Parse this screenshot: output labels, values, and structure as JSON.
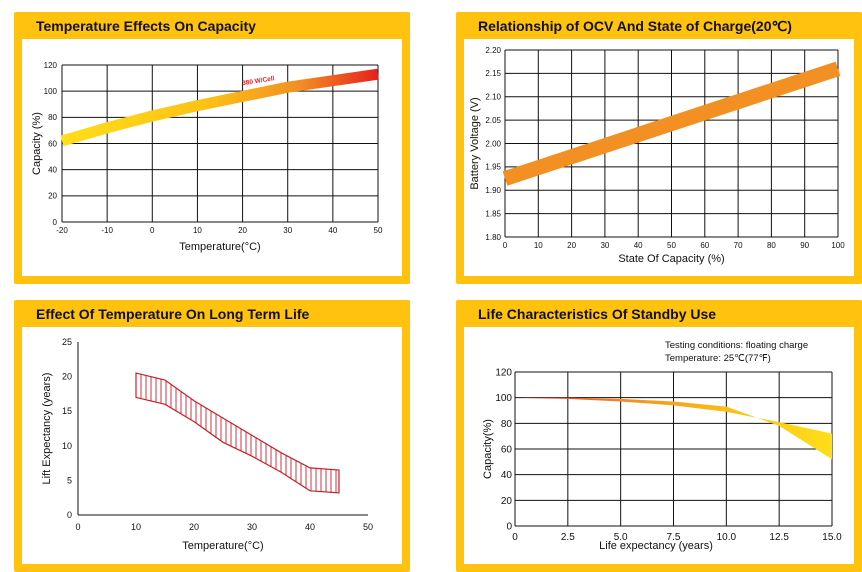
{
  "colors": {
    "accent": "#ffc20e",
    "grid": "#111111",
    "red": "#e8201e",
    "orange": "#f29023",
    "yellow": "#ffde1a",
    "hatch": "#c8202a"
  },
  "chart_data": [
    {
      "id": "temp-capacity",
      "type": "line",
      "title": "Temperature Effects On Capacity",
      "xlabel": "Temperature(°C)",
      "ylabel": "Capacity (%)",
      "xlim": [
        -20,
        50
      ],
      "ylim": [
        0,
        120
      ],
      "xticks": [
        "-20",
        "-10",
        "0",
        "10",
        "20",
        "30",
        "40",
        "50"
      ],
      "yticks": [
        "0",
        "20",
        "40",
        "60",
        "80",
        "100",
        "120"
      ],
      "grid": true,
      "series": [
        {
          "x": [
            -20,
            -10,
            0,
            10,
            20,
            30,
            40,
            50
          ],
          "y": [
            62,
            72,
            81,
            89,
            96,
            103,
            108,
            113
          ]
        }
      ],
      "annotation": "380 W/Cell",
      "gradient": "yellow-to-red"
    },
    {
      "id": "ocv-soc",
      "type": "line",
      "title": "Relationship of OCV And State of Charge(20℃)",
      "xlabel": "State Of Capacity (%)",
      "ylabel": "Battery Voltage (V)",
      "xlim": [
        0,
        100
      ],
      "ylim": [
        1.8,
        2.2
      ],
      "xticks": [
        "0",
        "10",
        "20",
        "30",
        "40",
        "50",
        "60",
        "70",
        "80",
        "90",
        "100"
      ],
      "yticks": [
        "1.80",
        "1.85",
        "1.90",
        "1.95",
        "2.00",
        "2.05",
        "2.10",
        "2.15",
        "2.20"
      ],
      "grid": true,
      "series": [
        {
          "x": [
            0,
            100
          ],
          "y": [
            1.925,
            2.16
          ]
        }
      ]
    },
    {
      "id": "temp-life",
      "type": "area",
      "title": "Effect Of Temperature On Long Term Life",
      "xlabel": "Temperature(°C)",
      "ylabel": "Lift Expectancy  (years)",
      "xlim": [
        0,
        50
      ],
      "ylim": [
        0,
        25
      ],
      "xticks": [
        "0",
        "10",
        "20",
        "30",
        "40",
        "50"
      ],
      "yticks": [
        "0",
        "5",
        "10",
        "15",
        "20",
        "25"
      ],
      "grid": false,
      "series": [
        {
          "x": [
            10,
            15,
            20,
            25,
            30,
            35,
            40,
            45
          ],
          "y": [
            20.5,
            19.5,
            16.5,
            14,
            11.5,
            9,
            6.8,
            6.5
          ]
        },
        {
          "x": [
            10,
            15,
            20,
            25,
            30,
            35,
            40,
            45
          ],
          "y": [
            17,
            16,
            13.5,
            10.5,
            8.5,
            6.2,
            3.5,
            3.2
          ]
        }
      ]
    },
    {
      "id": "standby-life",
      "type": "area",
      "title": "Life Characteristics Of Standby Use",
      "xlabel": "Life expectancy (years)",
      "ylabel": "Capacity(%)",
      "xlim": [
        0,
        15
      ],
      "ylim": [
        0,
        120
      ],
      "xticks": [
        "0",
        "2.5",
        "5.0",
        "7.5",
        "10.0",
        "12.5",
        "15.0"
      ],
      "yticks": [
        "0",
        "20",
        "40",
        "60",
        "80",
        "100",
        "120"
      ],
      "grid": true,
      "notes": [
        "Testing conditions: floating charge",
        "Temperature: 25℃(77℉)"
      ],
      "series": [
        {
          "x": [
            0,
            2.5,
            5,
            7.5,
            10,
            12.5,
            15
          ],
          "y": [
            100,
            99,
            97,
            94,
            89,
            81,
            72
          ]
        },
        {
          "x": [
            0,
            2.5,
            5,
            7.5,
            10,
            12.5,
            15
          ],
          "y": [
            100,
            100,
            99,
            97,
            93,
            78,
            52
          ]
        }
      ],
      "gradient": "red-to-yellow"
    }
  ]
}
